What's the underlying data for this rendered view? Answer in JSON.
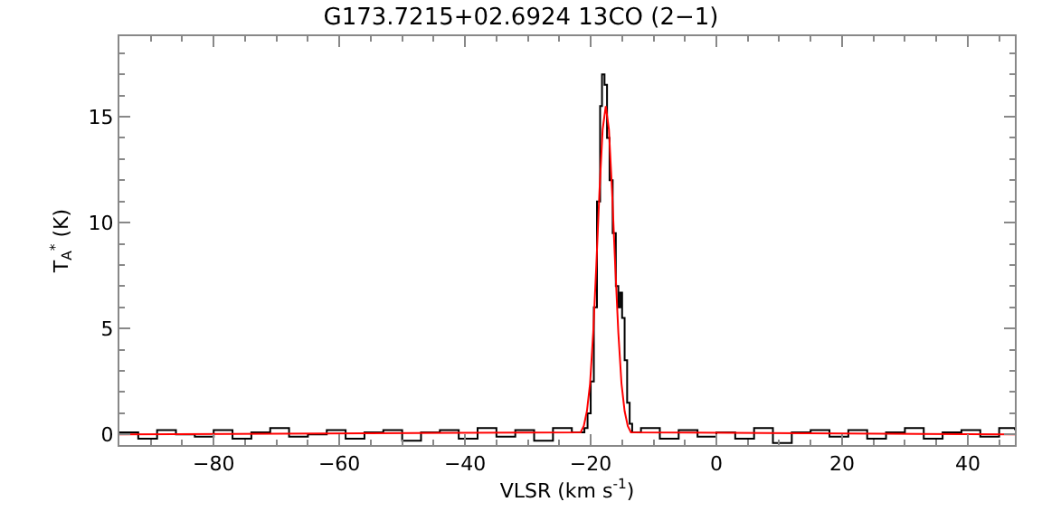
{
  "chart_data": {
    "type": "step",
    "title": "G173.7215+02.6924 13CO (2−1)",
    "xlabel": "VLSR (km s$^{-1}$)",
    "ylabel": "T$_{A}$$^{*}$ (K)",
    "xlim": [
      -95,
      47.5
    ],
    "ylim": [
      -0.5,
      18.8
    ],
    "xticks": [
      -80,
      -60,
      -40,
      -20,
      0,
      20,
      40
    ],
    "yticks": [
      0,
      5,
      10,
      15
    ],
    "series": [
      {
        "color": "#000000",
        "x": [
          -95,
          -92,
          -89,
          -86,
          -83,
          -80,
          -77,
          -74,
          -71,
          -68,
          -65,
          -62,
          -59,
          -56,
          -53,
          -50,
          -47,
          -44,
          -41,
          -38,
          -35,
          -32,
          -29,
          -26,
          -23,
          -21,
          -20.5,
          -20,
          -19.5,
          -19,
          -18.5,
          -18.2,
          -17.8,
          -17.4,
          -17,
          -16.5,
          -16,
          -15.6,
          -15.3,
          -15,
          -14.6,
          -14.2,
          -13.8,
          -13.4,
          -12,
          -9,
          -6,
          -3,
          0,
          3,
          6,
          9,
          12,
          15,
          18,
          21,
          24,
          27,
          30,
          33,
          36,
          39,
          42,
          45,
          47.5
        ],
        "values": [
          0.1,
          -0.2,
          0.2,
          0.0,
          -0.1,
          0.2,
          -0.2,
          0.1,
          0.3,
          -0.1,
          0.0,
          0.2,
          -0.2,
          0.1,
          0.2,
          -0.3,
          0.1,
          0.2,
          -0.2,
          0.3,
          -0.1,
          0.2,
          -0.3,
          0.3,
          0.1,
          0.3,
          1.0,
          2.5,
          6.0,
          11.0,
          15.5,
          17.0,
          16.5,
          14.0,
          12.0,
          9.5,
          7.0,
          6.0,
          6.7,
          5.5,
          3.5,
          1.5,
          0.5,
          0.1,
          0.3,
          -0.2,
          0.2,
          -0.1,
          0.1,
          -0.2,
          0.3,
          -0.4,
          0.1,
          0.2,
          -0.1,
          0.2,
          -0.2,
          0.1,
          0.3,
          -0.2,
          0.1,
          0.2,
          -0.1,
          0.3,
          0.2
        ]
      },
      {
        "type": "line",
        "color": "#ff0000",
        "x": [
          -95,
          -21.6,
          -21.1,
          -20.6,
          -20.1,
          -19.6,
          -19.1,
          -18.6,
          -18.1,
          -17.6,
          -17.1,
          -16.6,
          -16.1,
          -15.6,
          -15.1,
          -14.6,
          -14.1,
          -13.6,
          47.5
        ],
        "values": [
          0,
          0.1,
          0.4,
          1.1,
          2.4,
          4.8,
          8.0,
          11.5,
          14.4,
          15.5,
          14.4,
          11.5,
          8.0,
          4.8,
          2.4,
          1.1,
          0.4,
          0.1,
          0
        ]
      }
    ]
  }
}
